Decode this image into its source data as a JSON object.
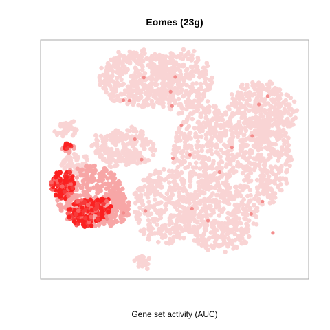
{
  "chart_data": {
    "type": "scatter",
    "title": "Eomes (23g)",
    "xlabel": "Gene set activity (AUC)",
    "ylabel": "",
    "grid": false,
    "legend": "none",
    "axes_shown": false,
    "color_scale": {
      "low": "#f9d4d4",
      "mid": "#f7a6a6",
      "high": "#fb2020"
    },
    "description_of_values": "Each point is a cell; point color encodes gene set activity (AUC) from low (light pink) to high (red).",
    "series": [
      {
        "values_level": [
          "low",
          "mid",
          "high"
        ]
      }
    ]
  }
}
